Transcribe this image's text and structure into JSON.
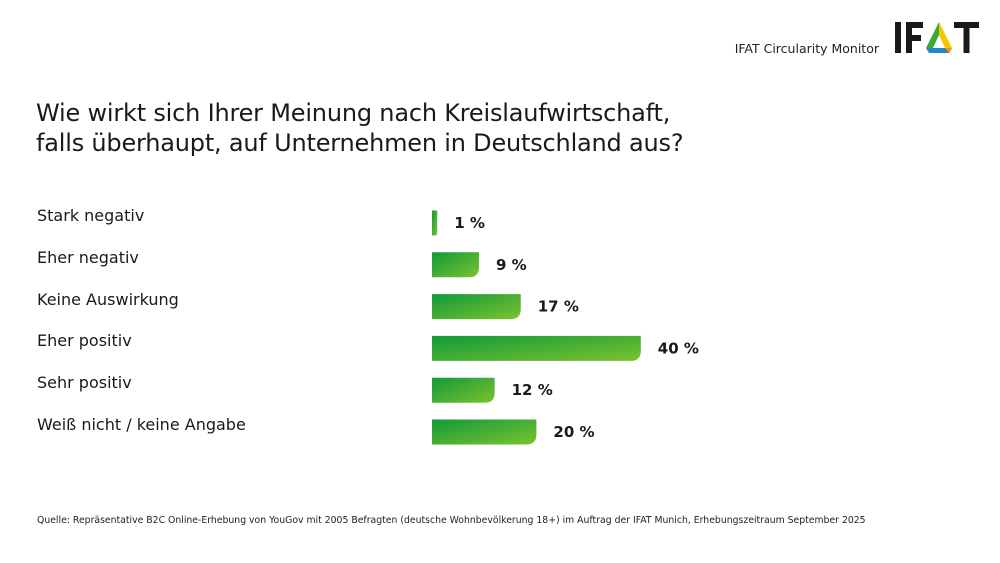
{
  "header": {
    "brand_label": "IFAT Circularity Monitor",
    "logo": {
      "name": "ifat-logo",
      "text_left": "IF",
      "text_right": "T",
      "colors": {
        "text": "#1a1a1a",
        "green": "#3aaa35",
        "blue": "#1e88c8",
        "orange": "#f39200",
        "yellow": "#f7c600"
      }
    }
  },
  "chart_data": {
    "type": "bar",
    "orientation": "horizontal",
    "title": "Wie wirkt sich Ihrer Meinung nach Kreislaufwirtschaft, falls überhaupt, auf Unternehmen in Deutschland aus?",
    "title_lines": [
      "Wie wirkt sich Ihrer Meinung nach Kreislaufwirtschaft,",
      "falls überhaupt, auf Unternehmen in Deutschland aus?"
    ],
    "categories": [
      "Stark negativ",
      "Eher negativ",
      "Keine Auswirkung",
      "Eher positiv",
      "Sehr positiv",
      "Weiß nicht / keine Angabe"
    ],
    "values": [
      1,
      9,
      17,
      40,
      12,
      20
    ],
    "value_labels": [
      "1 %",
      "9 %",
      "17 %",
      "40 %",
      "12 %",
      "20 %"
    ],
    "unit": "%",
    "xlabel": "",
    "ylabel": "",
    "xlim": [
      0,
      40
    ],
    "grid": false,
    "legend": "none",
    "colors": {
      "bar_start": "#109a3a",
      "bar_end": "#7cc22e"
    }
  },
  "footer": {
    "source": "Quelle: Repräsentative B2C Online-Erhebung von YouGov mit 2005 Befragten (deutsche Wohnbevölkerung 18+) im Auftrag der IFAT Munich, Erhebungszeitraum September 2025"
  }
}
